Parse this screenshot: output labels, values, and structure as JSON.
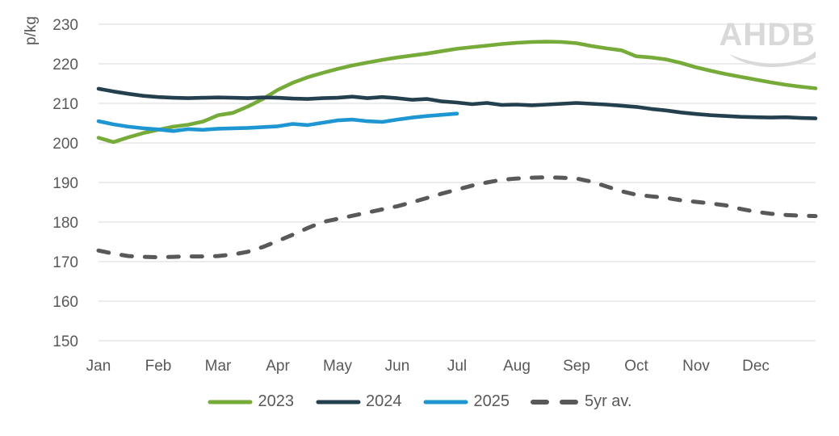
{
  "branding": {
    "logo_text": "AHDB"
  },
  "colors": {
    "series_2023": "#76ab3a",
    "series_2024": "#24404f",
    "series_2025": "#1e96d2",
    "series_5yr_av": "#595959",
    "gridline": "#d9d9d9",
    "axis_text": "#595959",
    "logo": "#d9d9d9",
    "background": "#ffffff"
  },
  "chart_data": {
    "type": "line",
    "title": "",
    "ylabel": "p/kg",
    "xlabel": "",
    "ylim": [
      150,
      230
    ],
    "ytick_step": 10,
    "yticks": [
      150,
      160,
      170,
      180,
      190,
      200,
      210,
      220,
      230
    ],
    "grid": "horizontal-only",
    "legend_position": "bottom",
    "x_unit": "months (0 = Jan tick, 12 = end of Dec; 0.25 step is approximately weekly)",
    "x_categories": [
      "Jan",
      "Feb",
      "Mar",
      "Apr",
      "May",
      "Jun",
      "Jul",
      "Aug",
      "Sep",
      "Oct",
      "Nov",
      "Dec"
    ],
    "series": [
      {
        "name": "2023",
        "color": "#76ab3a",
        "style": "solid",
        "x": [
          0,
          0.25,
          0.5,
          0.75,
          1,
          1.25,
          1.5,
          1.75,
          2,
          2.25,
          2.5,
          2.75,
          3,
          3.25,
          3.5,
          3.75,
          4,
          4.25,
          4.5,
          4.75,
          5,
          5.25,
          5.5,
          5.75,
          6,
          6.25,
          6.5,
          6.75,
          7,
          7.25,
          7.5,
          7.75,
          8,
          8.25,
          8.5,
          8.75,
          9,
          9.25,
          9.5,
          9.75,
          10,
          10.25,
          10.5,
          10.75,
          11,
          11.25,
          11.5,
          11.75,
          12
        ],
        "values": [
          201.3,
          200.2,
          201.4,
          202.5,
          203.3,
          204.1,
          204.6,
          205.4,
          207.0,
          207.6,
          209.2,
          211.1,
          213.4,
          215.2,
          216.6,
          217.7,
          218.7,
          219.6,
          220.3,
          221.0,
          221.6,
          222.1,
          222.6,
          223.2,
          223.8,
          224.2,
          224.6,
          225.0,
          225.3,
          225.5,
          225.6,
          225.5,
          225.2,
          224.5,
          223.9,
          223.4,
          221.9,
          221.6,
          221.1,
          220.2,
          219.1,
          218.2,
          217.4,
          216.7,
          216.0,
          215.3,
          214.7,
          214.2,
          213.8
        ]
      },
      {
        "name": "2024",
        "color": "#24404f",
        "style": "solid",
        "x": [
          0,
          0.25,
          0.5,
          0.75,
          1,
          1.25,
          1.5,
          1.75,
          2,
          2.25,
          2.5,
          2.75,
          3,
          3.25,
          3.5,
          3.75,
          4,
          4.25,
          4.5,
          4.75,
          5,
          5.25,
          5.5,
          5.75,
          6,
          6.25,
          6.5,
          6.75,
          7,
          7.25,
          7.5,
          7.75,
          8,
          8.25,
          8.5,
          8.75,
          9,
          9.25,
          9.5,
          9.75,
          10,
          10.25,
          10.5,
          10.75,
          11,
          11.25,
          11.5,
          11.75,
          12
        ],
        "values": [
          213.7,
          213.0,
          212.4,
          211.9,
          211.6,
          211.4,
          211.3,
          211.4,
          211.5,
          211.4,
          211.3,
          211.5,
          211.4,
          211.2,
          211.1,
          211.3,
          211.4,
          211.7,
          211.3,
          211.6,
          211.3,
          210.9,
          211.1,
          210.5,
          210.2,
          209.8,
          210.1,
          209.6,
          209.7,
          209.5,
          209.7,
          209.9,
          210.1,
          209.9,
          209.7,
          209.4,
          209.1,
          208.6,
          208.2,
          207.7,
          207.3,
          207.0,
          206.8,
          206.6,
          206.5,
          206.4,
          206.5,
          206.3,
          206.2
        ]
      },
      {
        "name": "2025",
        "color": "#1e96d2",
        "style": "solid",
        "x": [
          0,
          0.25,
          0.5,
          0.75,
          1,
          1.25,
          1.5,
          1.75,
          2,
          2.25,
          2.5,
          2.75,
          3,
          3.25,
          3.5,
          3.75,
          4,
          4.25,
          4.5,
          4.75,
          5,
          5.25,
          5.5,
          5.75,
          6
        ],
        "values": [
          205.5,
          204.7,
          204.1,
          203.7,
          203.4,
          203.0,
          203.5,
          203.3,
          203.6,
          203.7,
          203.8,
          204.0,
          204.2,
          204.8,
          204.5,
          205.1,
          205.7,
          205.9,
          205.5,
          205.3,
          205.9,
          206.4,
          206.8,
          207.1,
          207.4
        ]
      },
      {
        "name": "5yr av.",
        "color": "#595959",
        "style": "dashed",
        "x": [
          0,
          0.25,
          0.5,
          0.75,
          1,
          1.25,
          1.5,
          1.75,
          2,
          2.25,
          2.5,
          2.75,
          3,
          3.25,
          3.5,
          3.75,
          4,
          4.25,
          4.5,
          4.75,
          5,
          5.25,
          5.5,
          5.75,
          6,
          6.25,
          6.5,
          6.75,
          7,
          7.25,
          7.5,
          7.75,
          8,
          8.25,
          8.5,
          8.75,
          9,
          9.25,
          9.5,
          9.75,
          10,
          10.25,
          10.5,
          10.75,
          11,
          11.25,
          11.5,
          11.75,
          12
        ],
        "values": [
          172.8,
          172.0,
          171.4,
          171.2,
          171.1,
          171.2,
          171.3,
          171.3,
          171.4,
          171.8,
          172.5,
          173.7,
          175.2,
          176.8,
          178.5,
          180.0,
          180.8,
          181.6,
          182.4,
          183.2,
          184.0,
          185.0,
          186.1,
          187.2,
          188.2,
          189.2,
          190.0,
          190.7,
          191.0,
          191.2,
          191.3,
          191.2,
          191.0,
          190.2,
          189.0,
          187.8,
          186.9,
          186.5,
          186.1,
          185.5,
          185.1,
          184.7,
          184.2,
          183.3,
          182.6,
          182.1,
          181.8,
          181.6,
          181.5
        ]
      }
    ]
  }
}
